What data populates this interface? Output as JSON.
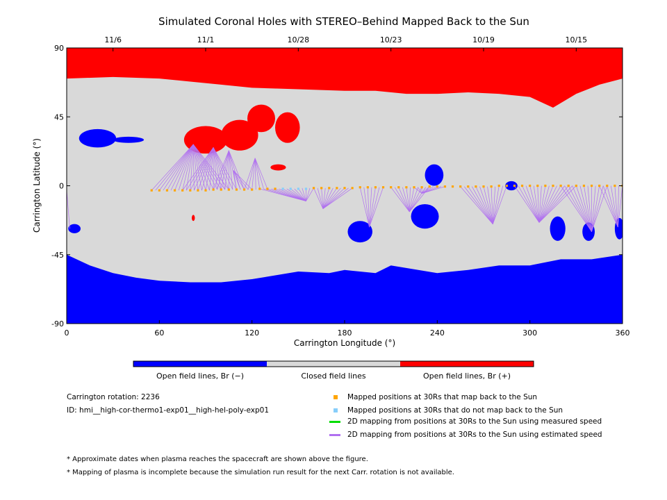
{
  "chart_data": {
    "type": "heatmap",
    "title": "Simulated Coronal Holes with STEREO–Behind Mapped Back to the Sun",
    "xlabel": "Carrington Longitude (°)",
    "ylabel": "Carrington Latitude (°)",
    "xlim": [
      0,
      360
    ],
    "ylim": [
      -90,
      90
    ],
    "x_ticks": [
      0,
      60,
      120,
      180,
      240,
      300,
      360
    ],
    "y_ticks": [
      -90,
      -45,
      0,
      45,
      90
    ],
    "top_axis": {
      "ticks": [
        {
          "label": "11/6",
          "lon": 30
        },
        {
          "label": "11/1",
          "lon": 90
        },
        {
          "label": "10/28",
          "lon": 150
        },
        {
          "label": "10/23",
          "lon": 210
        },
        {
          "label": "10/19",
          "lon": 270
        },
        {
          "label": "10/15",
          "lon": 330
        }
      ]
    },
    "colorbar": [
      {
        "label": "Open field lines, Br (−)",
        "color": "#0000ff"
      },
      {
        "label": "Closed field lines",
        "color": "#d9d9d9"
      },
      {
        "label": "Open field lines, Br (+)",
        "color": "#ff0000"
      }
    ],
    "regions": {
      "north_polar_boundary_lat": [
        [
          0,
          70
        ],
        [
          30,
          71
        ],
        [
          60,
          70
        ],
        [
          80,
          68
        ],
        [
          100,
          66
        ],
        [
          120,
          64
        ],
        [
          150,
          63
        ],
        [
          180,
          62
        ],
        [
          200,
          62
        ],
        [
          220,
          60
        ],
        [
          240,
          60
        ],
        [
          260,
          61
        ],
        [
          280,
          60
        ],
        [
          300,
          58
        ],
        [
          315,
          51
        ],
        [
          330,
          60
        ],
        [
          345,
          66
        ],
        [
          360,
          70
        ]
      ],
      "south_polar_boundary_lat": [
        [
          0,
          -45
        ],
        [
          15,
          -52
        ],
        [
          30,
          -57
        ],
        [
          45,
          -60
        ],
        [
          60,
          -62
        ],
        [
          80,
          -63
        ],
        [
          100,
          -63
        ],
        [
          120,
          -61
        ],
        [
          150,
          -56
        ],
        [
          170,
          -57
        ],
        [
          180,
          -55
        ],
        [
          200,
          -57
        ],
        [
          210,
          -52
        ],
        [
          240,
          -57
        ],
        [
          260,
          -55
        ],
        [
          280,
          -52
        ],
        [
          300,
          -52
        ],
        [
          320,
          -48
        ],
        [
          340,
          -48
        ],
        [
          360,
          -45
        ]
      ],
      "blue_patches": [
        {
          "lon": 20,
          "lat": 31,
          "r_lon": 12,
          "r_lat": 6
        },
        {
          "lon": 40,
          "lat": 30,
          "r_lon": 10,
          "r_lat": 2
        },
        {
          "lon": 190,
          "lat": -30,
          "r_lon": 8,
          "r_lat": 7
        },
        {
          "lon": 238,
          "lat": 7,
          "r_lon": 6,
          "r_lat": 7
        },
        {
          "lon": 232,
          "lat": -20,
          "r_lon": 9,
          "r_lat": 8
        },
        {
          "lon": 288,
          "lat": 0,
          "r_lon": 4,
          "r_lat": 3
        },
        {
          "lon": 318,
          "lat": -28,
          "r_lon": 5,
          "r_lat": 8
        },
        {
          "lon": 338,
          "lat": -30,
          "r_lon": 4,
          "r_lat": 6
        },
        {
          "lon": 358,
          "lat": -28,
          "r_lon": 3,
          "r_lat": 7
        },
        {
          "lon": 5,
          "lat": -28,
          "r_lon": 4,
          "r_lat": 3
        }
      ],
      "red_patches": [
        {
          "lon": 90,
          "lat": 30,
          "r_lon": 14,
          "r_lat": 9
        },
        {
          "lon": 112,
          "lat": 33,
          "r_lon": 12,
          "r_lat": 10
        },
        {
          "lon": 143,
          "lat": 38,
          "r_lon": 8,
          "r_lat": 10
        },
        {
          "lon": 126,
          "lat": 44,
          "r_lon": 9,
          "r_lat": 9
        },
        {
          "lon": 137,
          "lat": 12,
          "r_lon": 5,
          "r_lat": 2
        },
        {
          "lon": 82,
          "lat": -21,
          "r_lon": 1,
          "r_lat": 2
        }
      ]
    },
    "series": [
      {
        "name": "Mapped positions at 30Rs that map back to the Sun",
        "color": "#ffa500",
        "lon": [
          55,
          60,
          65,
          70,
          75,
          80,
          85,
          90,
          95,
          100,
          105,
          110,
          115,
          120,
          125,
          130,
          135,
          160,
          165,
          170,
          175,
          180,
          185,
          190,
          195,
          200,
          205,
          210,
          215,
          220,
          225,
          230,
          235,
          240,
          245,
          250,
          255,
          260,
          265,
          270,
          275,
          280,
          285,
          290,
          295,
          300,
          305,
          310,
          315,
          320,
          325,
          330,
          335,
          340,
          345,
          350,
          355,
          360
        ],
        "lat": [
          -3,
          -3,
          -3,
          -3,
          -3,
          -3,
          -3,
          -3,
          -2.5,
          -2.5,
          -2.5,
          -2.5,
          -2.5,
          -2.5,
          -2,
          -2,
          -2,
          -1.5,
          -1.5,
          -1.5,
          -1.5,
          -1.5,
          -1.5,
          -1,
          -1,
          -1,
          -1,
          -1,
          -1,
          -1,
          -1,
          -1,
          -0.5,
          -0.5,
          -0.5,
          -0.5,
          -0.5,
          -0.5,
          -0.5,
          -0.5,
          -0.5,
          0,
          0,
          0,
          0,
          0,
          0,
          0,
          0,
          0,
          0,
          0,
          0,
          0,
          0,
          0,
          0,
          0
        ]
      },
      {
        "name": "Mapped positions at 30Rs that do not map back to the Sun",
        "color": "#87cefa",
        "lon": [
          140,
          145,
          150,
          155
        ],
        "lat": [
          -2,
          -2,
          -2,
          -2
        ]
      },
      {
        "name": "2D mapping from positions at 30Rs to the Sun using measured speed",
        "color": "#00dd00"
      },
      {
        "name": "2D mapping from positions at 30Rs to the Sun using estimated speed",
        "color": "#b070f0",
        "footpoints": [
          {
            "lon": 82,
            "lat": 27,
            "from": [
              55,
              105
            ]
          },
          {
            "lon": 95,
            "lat": 25,
            "from": [
              75,
              110
            ]
          },
          {
            "lon": 105,
            "lat": 23,
            "from": [
              95,
              115
            ]
          },
          {
            "lon": 108,
            "lat": 10,
            "from": [
              110,
              120
            ]
          },
          {
            "lon": 122,
            "lat": 18,
            "from": [
              115,
              130
            ]
          },
          {
            "lon": 155,
            "lat": -10,
            "from": [
              125,
              160
            ]
          },
          {
            "lon": 166,
            "lat": -15,
            "from": [
              160,
              185
            ]
          },
          {
            "lon": 196,
            "lat": -27,
            "from": [
              190,
              205
            ]
          },
          {
            "lon": 222,
            "lat": -17,
            "from": [
              210,
              235
            ]
          },
          {
            "lon": 230,
            "lat": -5,
            "from": [
              225,
              245
            ]
          },
          {
            "lon": 276,
            "lat": -25,
            "from": [
              255,
              285
            ]
          },
          {
            "lon": 306,
            "lat": -24,
            "from": [
              290,
              330
            ]
          },
          {
            "lon": 340,
            "lat": -30,
            "from": [
              320,
              350
            ]
          },
          {
            "lon": 357,
            "lat": -27,
            "from": [
              345,
              360
            ]
          },
          {
            "lon": 2,
            "lat": -28,
            "from": [
              0,
              2
            ]
          }
        ]
      }
    ]
  },
  "info": {
    "rotation": "Carrington rotation: 2236",
    "run_id": "ID: hmi__high-cor-thermo1-exp01__high-hel-poly-exp01"
  },
  "footnotes": [
    "* Approximate dates when plasma reaches the spacecraft are shown above the figure.",
    "* Mapping of plasma is incomplete because the simulation run result for the next Carr. rotation is not available."
  ]
}
